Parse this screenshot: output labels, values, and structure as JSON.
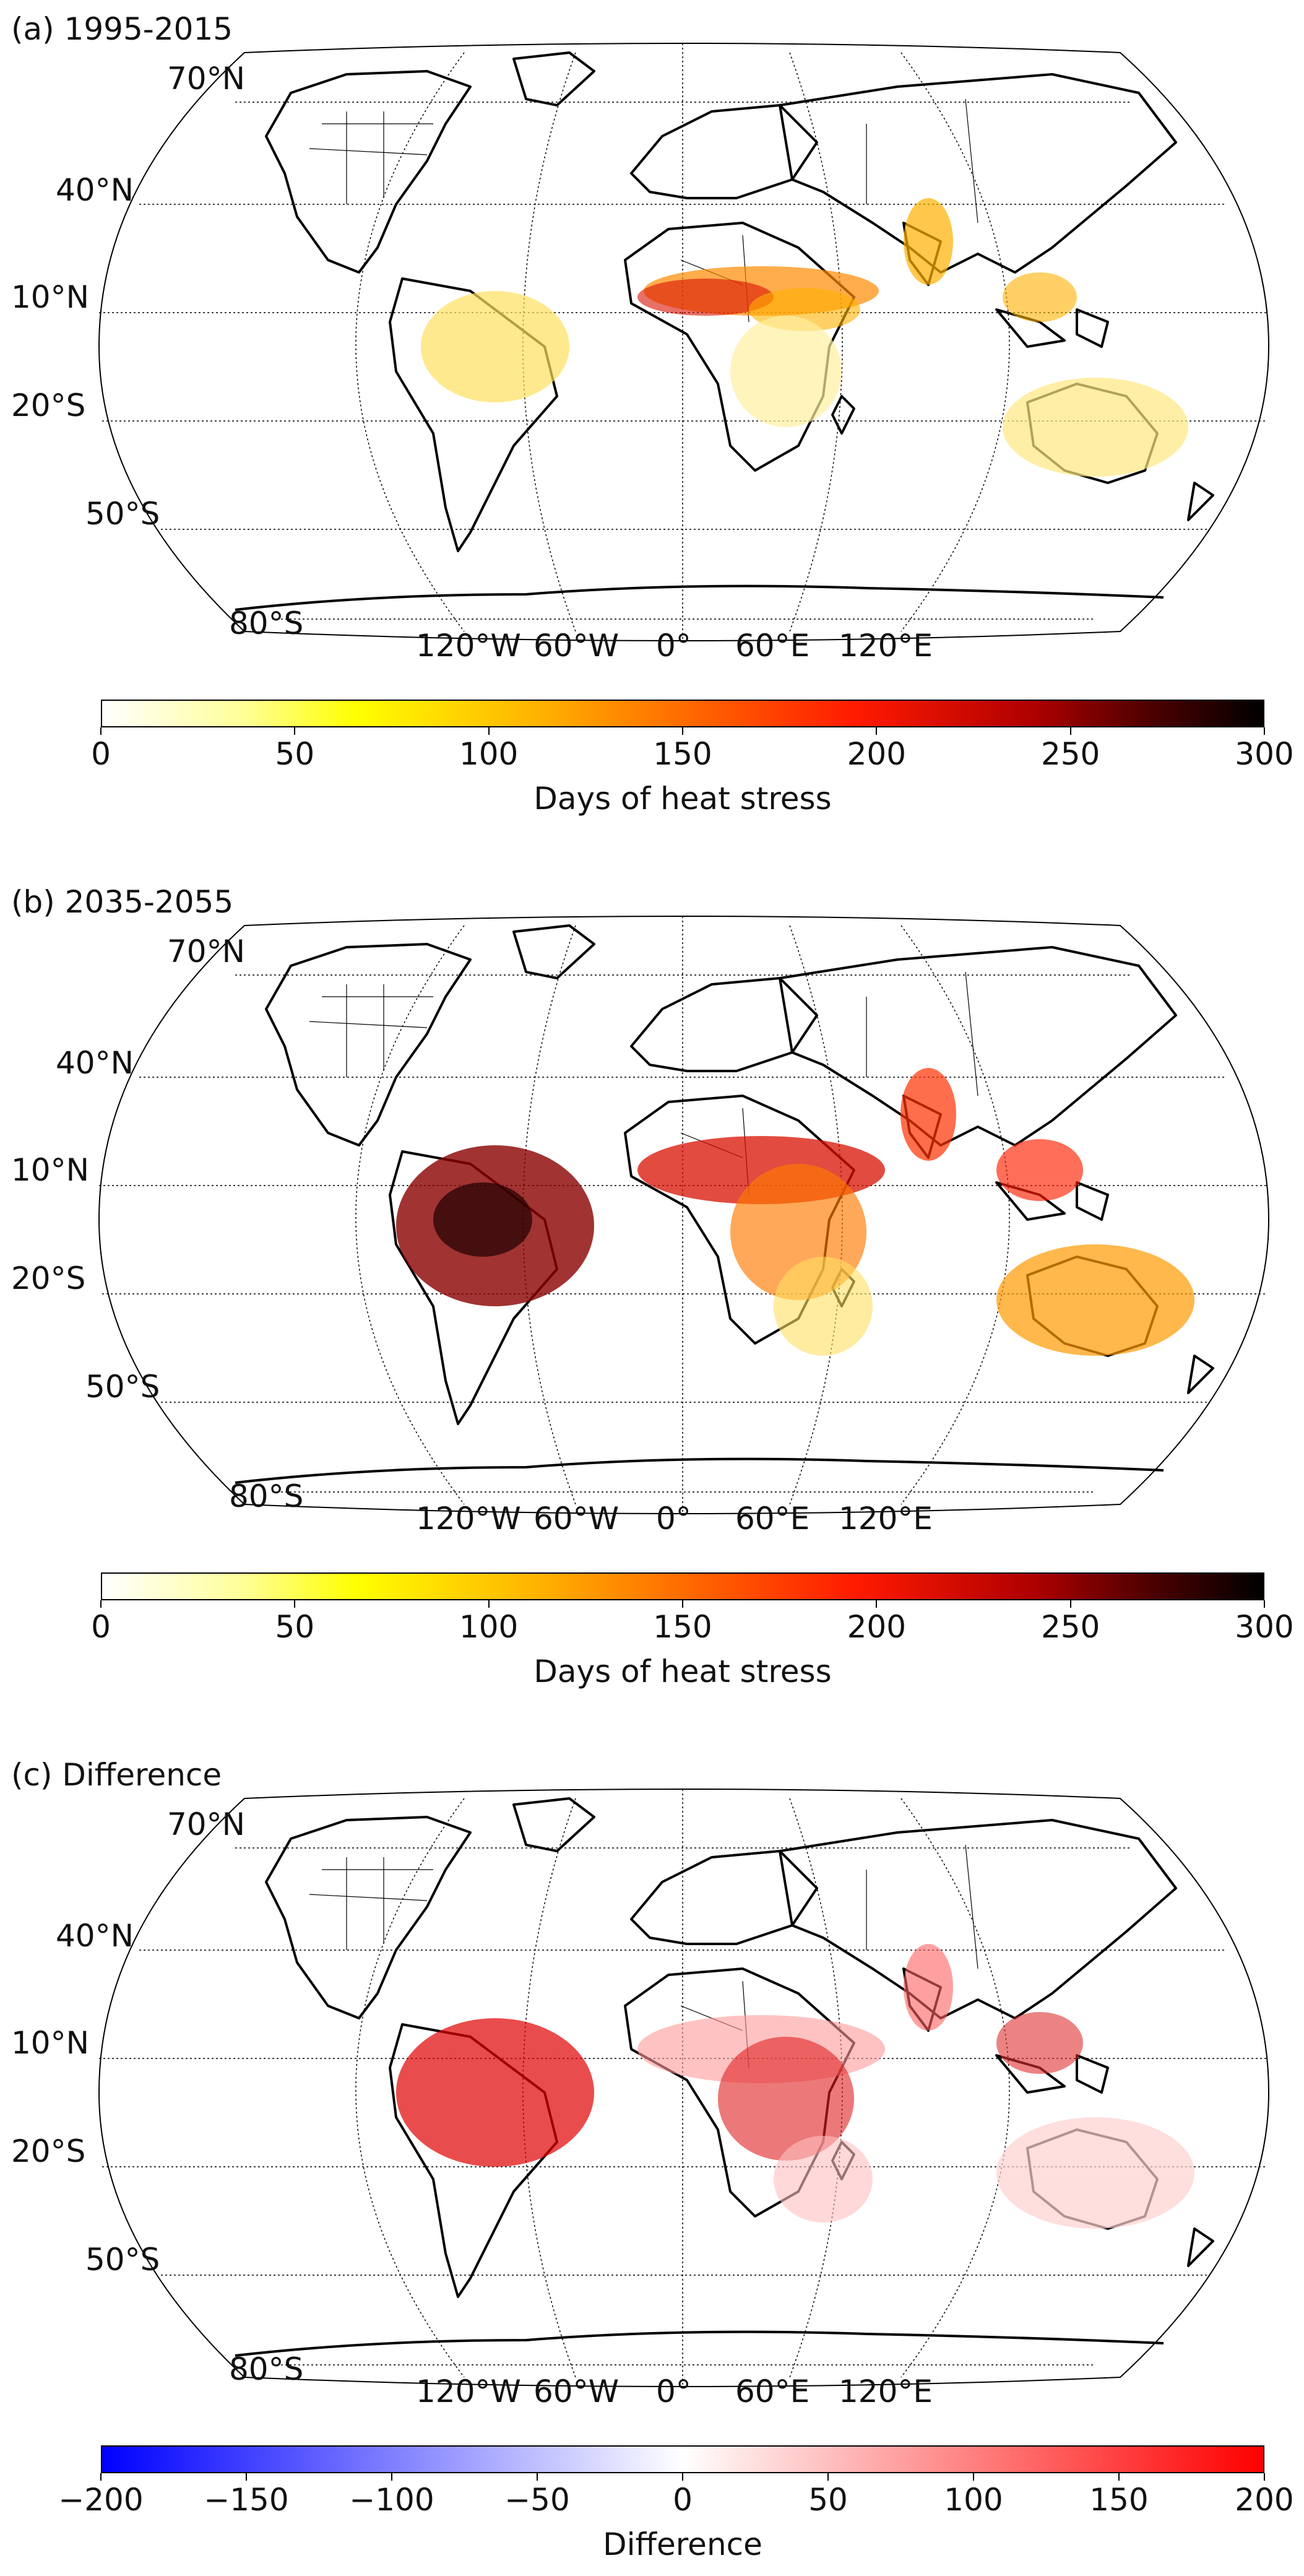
{
  "panels": [
    {
      "title": "(a) 1995-2015",
      "colorbar": {
        "label": "Days of heat stress",
        "ticks": [
          "0",
          "50",
          "100",
          "150",
          "200",
          "250",
          "300"
        ],
        "range": [
          0,
          300
        ],
        "colormap": "hot_r (white-yellow-orange-red-black)"
      }
    },
    {
      "title": "(b) 2035-2055",
      "colorbar": {
        "label": "Days of heat stress",
        "ticks": [
          "0",
          "50",
          "100",
          "150",
          "200",
          "250",
          "300"
        ],
        "range": [
          0,
          300
        ],
        "colormap": "hot_r (white-yellow-orange-red-black)"
      }
    },
    {
      "title": "(c) Difference",
      "colorbar": {
        "label": "Difference",
        "ticks": [
          "−200",
          "−150",
          "−100",
          "−50",
          "0",
          "50",
          "100",
          "150",
          "200"
        ],
        "range": [
          -200,
          200
        ],
        "colormap": "bwr (blue-white-red)"
      }
    }
  ],
  "map": {
    "projection": "Robinson",
    "lat_labels": [
      "70°N",
      "40°N",
      "10°N",
      "20°S",
      "50°S",
      "80°S"
    ],
    "lon_labels": [
      "120°W",
      "60°W",
      "0°",
      "60°E",
      "120°E"
    ]
  },
  "colors": {
    "hot_r": [
      "#ffffff",
      "#ffff66",
      "#ffc000",
      "#ff7a00",
      "#ff1a00",
      "#b00000",
      "#500000",
      "#000000"
    ],
    "bwr": [
      "#0000ff",
      "#ffffff",
      "#ff0000"
    ]
  }
}
